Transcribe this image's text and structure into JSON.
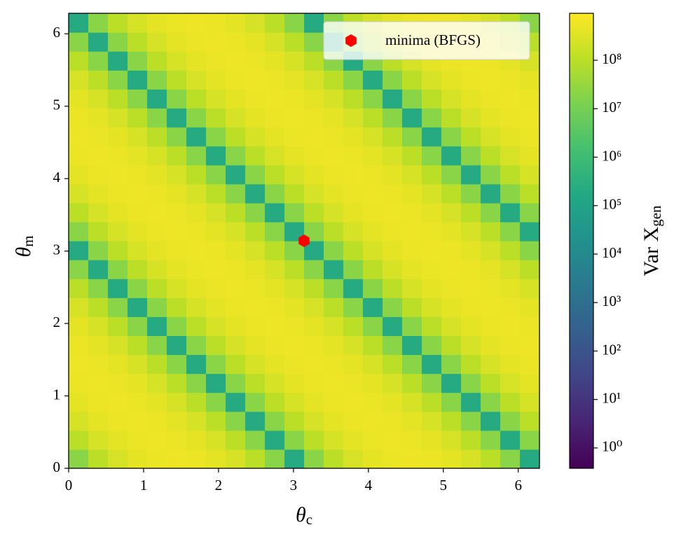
{
  "chart_data": {
    "type": "heatmap",
    "xlabel": {
      "base": "θ",
      "sub": "c"
    },
    "ylabel": {
      "base": "θ",
      "sub": "m"
    },
    "xlim": [
      0,
      6.283
    ],
    "ylim": [
      0,
      6.283
    ],
    "xticks": [
      0,
      1,
      2,
      3,
      4,
      5,
      6
    ],
    "yticks": [
      0,
      1,
      2,
      3,
      4,
      5,
      6
    ],
    "colormap": "viridis",
    "zscale": "log",
    "zlim": [
      0.38,
      930000000.0
    ],
    "zticks": [
      {
        "value": 1,
        "label": "10⁰"
      },
      {
        "value": 10,
        "label": "10¹"
      },
      {
        "value": 100,
        "label": "10²"
      },
      {
        "value": 1000,
        "label": "10³"
      },
      {
        "value": 10000,
        "label": "10⁴"
      },
      {
        "value": 100000,
        "label": "10⁵"
      },
      {
        "value": 1000000,
        "label": "10⁶"
      },
      {
        "value": 10000000,
        "label": "10⁷"
      },
      {
        "value": 100000000,
        "label": "10⁸"
      }
    ],
    "colorbar_label": {
      "base": "Var X",
      "sub": "gen"
    },
    "z": [
      [
        20000000.0,
        100000000.0,
        250000000.0,
        400000000.0,
        500000000.0,
        550000000.0,
        500000000.0,
        400000000.0,
        250000000.0,
        100000000.0,
        20000000.0,
        200000.0,
        20000000.0,
        100000000.0,
        250000000.0,
        400000000.0,
        500000000.0,
        550000000.0,
        500000000.0,
        400000000.0,
        250000000.0,
        100000000.0,
        20000000.0,
        200000.0
      ],
      [
        100000000.0,
        250000000.0,
        400000000.0,
        500000000.0,
        550000000.0,
        500000000.0,
        400000000.0,
        250000000.0,
        100000000.0,
        20000000.0,
        200000.0,
        20000000.0,
        100000000.0,
        250000000.0,
        400000000.0,
        500000000.0,
        550000000.0,
        500000000.0,
        400000000.0,
        250000000.0,
        100000000.0,
        20000000.0,
        200000.0,
        20000000.0
      ],
      [
        250000000.0,
        400000000.0,
        500000000.0,
        550000000.0,
        500000000.0,
        400000000.0,
        250000000.0,
        100000000.0,
        20000000.0,
        200000.0,
        20000000.0,
        100000000.0,
        250000000.0,
        400000000.0,
        500000000.0,
        550000000.0,
        500000000.0,
        400000000.0,
        250000000.0,
        100000000.0,
        20000000.0,
        200000.0,
        20000000.0,
        100000000.0
      ],
      [
        400000000.0,
        500000000.0,
        550000000.0,
        500000000.0,
        400000000.0,
        250000000.0,
        100000000.0,
        20000000.0,
        200000.0,
        20000000.0,
        100000000.0,
        250000000.0,
        400000000.0,
        500000000.0,
        550000000.0,
        500000000.0,
        400000000.0,
        250000000.0,
        100000000.0,
        20000000.0,
        200000.0,
        20000000.0,
        100000000.0,
        250000000.0
      ],
      [
        500000000.0,
        550000000.0,
        500000000.0,
        400000000.0,
        250000000.0,
        100000000.0,
        20000000.0,
        200000.0,
        20000000.0,
        100000000.0,
        250000000.0,
        400000000.0,
        500000000.0,
        550000000.0,
        500000000.0,
        400000000.0,
        250000000.0,
        100000000.0,
        20000000.0,
        200000.0,
        20000000.0,
        100000000.0,
        250000000.0,
        400000000.0
      ],
      [
        550000000.0,
        500000000.0,
        400000000.0,
        250000000.0,
        100000000.0,
        20000000.0,
        200000.0,
        20000000.0,
        100000000.0,
        250000000.0,
        400000000.0,
        500000000.0,
        550000000.0,
        500000000.0,
        400000000.0,
        250000000.0,
        100000000.0,
        20000000.0,
        200000.0,
        20000000.0,
        100000000.0,
        250000000.0,
        400000000.0,
        500000000.0
      ],
      [
        500000000.0,
        400000000.0,
        250000000.0,
        100000000.0,
        20000000.0,
        200000.0,
        20000000.0,
        100000000.0,
        250000000.0,
        400000000.0,
        500000000.0,
        550000000.0,
        500000000.0,
        400000000.0,
        250000000.0,
        100000000.0,
        20000000.0,
        200000.0,
        20000000.0,
        100000000.0,
        250000000.0,
        400000000.0,
        500000000.0,
        550000000.0
      ],
      [
        400000000.0,
        250000000.0,
        100000000.0,
        20000000.0,
        200000.0,
        20000000.0,
        100000000.0,
        250000000.0,
        400000000.0,
        500000000.0,
        550000000.0,
        500000000.0,
        400000000.0,
        250000000.0,
        100000000.0,
        20000000.0,
        200000.0,
        20000000.0,
        100000000.0,
        250000000.0,
        400000000.0,
        500000000.0,
        550000000.0,
        500000000.0
      ],
      [
        250000000.0,
        100000000.0,
        20000000.0,
        200000.0,
        20000000.0,
        100000000.0,
        250000000.0,
        400000000.0,
        500000000.0,
        550000000.0,
        500000000.0,
        400000000.0,
        250000000.0,
        100000000.0,
        20000000.0,
        200000.0,
        20000000.0,
        100000000.0,
        250000000.0,
        400000000.0,
        500000000.0,
        550000000.0,
        500000000.0,
        400000000.0
      ],
      [
        100000000.0,
        20000000.0,
        200000.0,
        20000000.0,
        100000000.0,
        250000000.0,
        400000000.0,
        500000000.0,
        550000000.0,
        500000000.0,
        400000000.0,
        250000000.0,
        100000000.0,
        20000000.0,
        200000.0,
        20000000.0,
        100000000.0,
        250000000.0,
        400000000.0,
        500000000.0,
        550000000.0,
        500000000.0,
        400000000.0,
        250000000.0
      ],
      [
        20000000.0,
        200000.0,
        20000000.0,
        100000000.0,
        250000000.0,
        400000000.0,
        500000000.0,
        550000000.0,
        500000000.0,
        400000000.0,
        250000000.0,
        100000000.0,
        20000000.0,
        200000.0,
        20000000.0,
        100000000.0,
        250000000.0,
        400000000.0,
        500000000.0,
        550000000.0,
        500000000.0,
        400000000.0,
        250000000.0,
        100000000.0
      ],
      [
        200000.0,
        20000000.0,
        100000000.0,
        250000000.0,
        400000000.0,
        500000000.0,
        550000000.0,
        500000000.0,
        400000000.0,
        250000000.0,
        100000000.0,
        20000000.0,
        200000.0,
        20000000.0,
        100000000.0,
        250000000.0,
        400000000.0,
        500000000.0,
        550000000.0,
        500000000.0,
        400000000.0,
        250000000.0,
        100000000.0,
        20000000.0
      ],
      [
        20000000.0,
        100000000.0,
        250000000.0,
        400000000.0,
        500000000.0,
        550000000.0,
        500000000.0,
        400000000.0,
        250000000.0,
        100000000.0,
        20000000.0,
        200000.0,
        20000000.0,
        100000000.0,
        250000000.0,
        400000000.0,
        500000000.0,
        550000000.0,
        500000000.0,
        400000000.0,
        250000000.0,
        100000000.0,
        20000000.0,
        200000.0
      ],
      [
        100000000.0,
        250000000.0,
        400000000.0,
        500000000.0,
        550000000.0,
        500000000.0,
        400000000.0,
        250000000.0,
        100000000.0,
        20000000.0,
        200000.0,
        20000000.0,
        100000000.0,
        250000000.0,
        400000000.0,
        500000000.0,
        550000000.0,
        500000000.0,
        400000000.0,
        250000000.0,
        100000000.0,
        20000000.0,
        200000.0,
        20000000.0
      ],
      [
        250000000.0,
        400000000.0,
        500000000.0,
        550000000.0,
        500000000.0,
        400000000.0,
        250000000.0,
        100000000.0,
        20000000.0,
        200000.0,
        20000000.0,
        100000000.0,
        250000000.0,
        400000000.0,
        500000000.0,
        550000000.0,
        500000000.0,
        400000000.0,
        250000000.0,
        100000000.0,
        20000000.0,
        200000.0,
        20000000.0,
        100000000.0
      ],
      [
        400000000.0,
        500000000.0,
        550000000.0,
        500000000.0,
        400000000.0,
        250000000.0,
        100000000.0,
        20000000.0,
        200000.0,
        20000000.0,
        100000000.0,
        250000000.0,
        400000000.0,
        500000000.0,
        550000000.0,
        500000000.0,
        400000000.0,
        250000000.0,
        100000000.0,
        20000000.0,
        200000.0,
        20000000.0,
        100000000.0,
        250000000.0
      ],
      [
        500000000.0,
        550000000.0,
        500000000.0,
        400000000.0,
        250000000.0,
        100000000.0,
        20000000.0,
        200000.0,
        20000000.0,
        100000000.0,
        250000000.0,
        400000000.0,
        500000000.0,
        550000000.0,
        500000000.0,
        400000000.0,
        250000000.0,
        100000000.0,
        20000000.0,
        200000.0,
        20000000.0,
        100000000.0,
        250000000.0,
        400000000.0
      ],
      [
        550000000.0,
        500000000.0,
        400000000.0,
        250000000.0,
        100000000.0,
        20000000.0,
        200000.0,
        20000000.0,
        100000000.0,
        250000000.0,
        400000000.0,
        500000000.0,
        550000000.0,
        500000000.0,
        400000000.0,
        250000000.0,
        100000000.0,
        20000000.0,
        200000.0,
        20000000.0,
        100000000.0,
        250000000.0,
        400000000.0,
        500000000.0
      ],
      [
        500000000.0,
        400000000.0,
        250000000.0,
        100000000.0,
        20000000.0,
        200000.0,
        20000000.0,
        100000000.0,
        250000000.0,
        400000000.0,
        500000000.0,
        550000000.0,
        500000000.0,
        400000000.0,
        250000000.0,
        100000000.0,
        20000000.0,
        200000.0,
        20000000.0,
        100000000.0,
        250000000.0,
        400000000.0,
        500000000.0,
        550000000.0
      ],
      [
        400000000.0,
        250000000.0,
        100000000.0,
        20000000.0,
        200000.0,
        20000000.0,
        100000000.0,
        250000000.0,
        400000000.0,
        500000000.0,
        550000000.0,
        500000000.0,
        400000000.0,
        250000000.0,
        100000000.0,
        20000000.0,
        200000.0,
        20000000.0,
        100000000.0,
        250000000.0,
        400000000.0,
        500000000.0,
        550000000.0,
        500000000.0
      ],
      [
        250000000.0,
        100000000.0,
        20000000.0,
        200000.0,
        20000000.0,
        100000000.0,
        250000000.0,
        400000000.0,
        500000000.0,
        550000000.0,
        500000000.0,
        400000000.0,
        250000000.0,
        100000000.0,
        20000000.0,
        200000.0,
        20000000.0,
        100000000.0,
        250000000.0,
        400000000.0,
        500000000.0,
        550000000.0,
        500000000.0,
        400000000.0
      ],
      [
        100000000.0,
        20000000.0,
        200000.0,
        20000000.0,
        100000000.0,
        250000000.0,
        400000000.0,
        500000000.0,
        550000000.0,
        500000000.0,
        400000000.0,
        250000000.0,
        100000000.0,
        20000000.0,
        200000.0,
        20000000.0,
        100000000.0,
        250000000.0,
        400000000.0,
        500000000.0,
        550000000.0,
        500000000.0,
        400000000.0,
        250000000.0
      ],
      [
        20000000.0,
        200000.0,
        20000000.0,
        100000000.0,
        250000000.0,
        400000000.0,
        500000000.0,
        550000000.0,
        500000000.0,
        400000000.0,
        250000000.0,
        100000000.0,
        20000000.0,
        200000.0,
        20000000.0,
        100000000.0,
        250000000.0,
        400000000.0,
        500000000.0,
        550000000.0,
        500000000.0,
        400000000.0,
        250000000.0,
        100000000.0
      ],
      [
        200000.0,
        20000000.0,
        100000000.0,
        250000000.0,
        400000000.0,
        500000000.0,
        550000000.0,
        500000000.0,
        400000000.0,
        250000000.0,
        100000000.0,
        20000000.0,
        200000.0,
        20000000.0,
        100000000.0,
        250000000.0,
        400000000.0,
        500000000.0,
        550000000.0,
        500000000.0,
        400000000.0,
        250000000.0,
        100000000.0,
        20000000.0
      ]
    ],
    "points": {
      "name": "minima (BFGS)",
      "color": "#ff0000",
      "marker": "hexagon",
      "x": [
        3.1416
      ],
      "y": [
        3.1416
      ]
    },
    "legend": "upper right"
  }
}
